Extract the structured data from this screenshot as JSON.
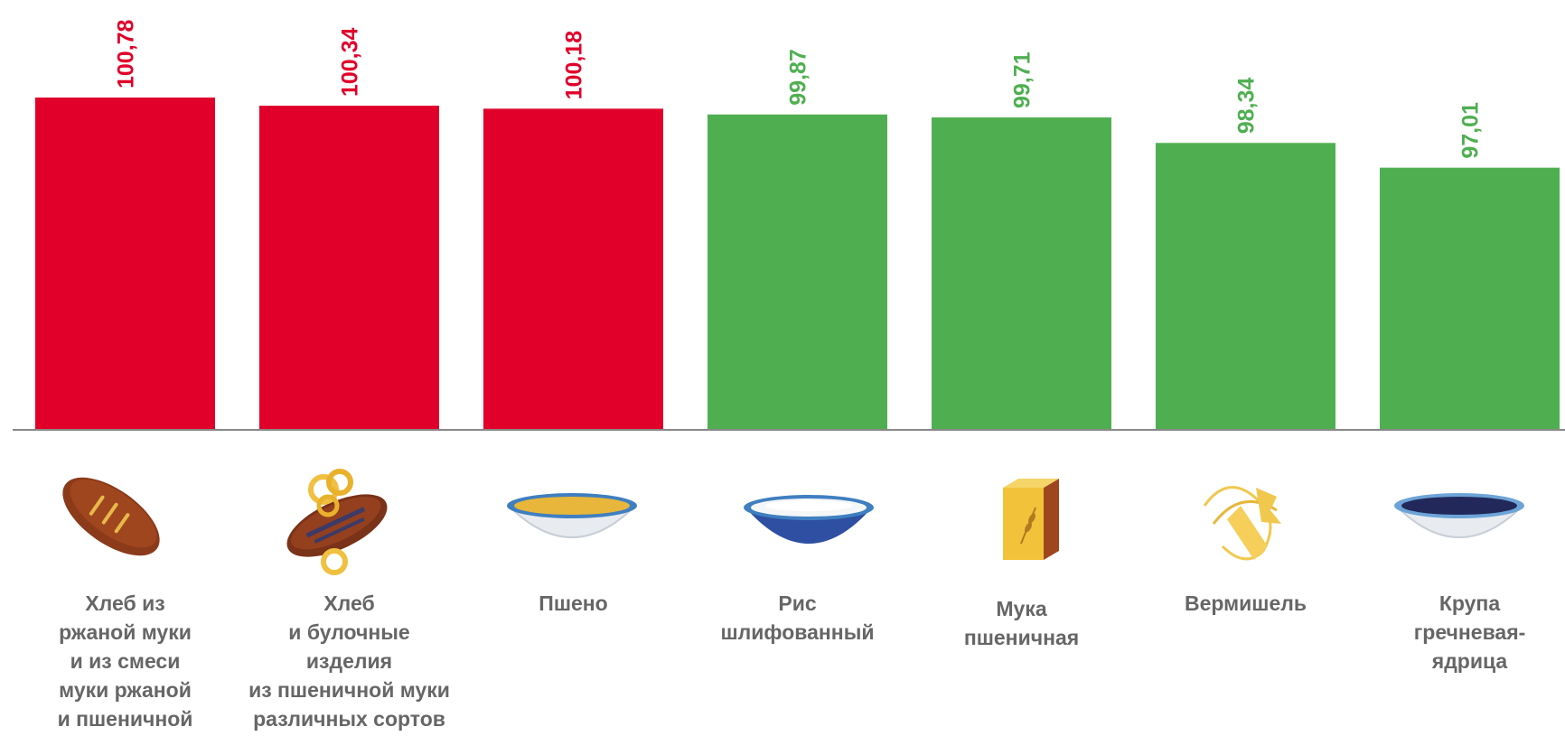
{
  "colors": {
    "above": "#E0002A",
    "below": "#4FAF50",
    "axis": "#888888",
    "label": "#666666"
  },
  "chart_data": {
    "type": "bar",
    "categories": [
      "Хлеб из\nржаной муки\nи из смеси\nмуки ржаной\nи пшеничной",
      "Хлеб\nи булочные\nизделия\nиз пшеничной муки\nразличных сортов",
      "Пшено",
      "Рис\nшлифованный",
      "Мука\nпшеничная",
      "Вермишель",
      "Крупа\nгречневая-\nядрица"
    ],
    "values": [
      100.78,
      100.34,
      100.18,
      99.87,
      99.71,
      98.34,
      97.01
    ],
    "value_labels": [
      "100,78",
      "100,34",
      "100,18",
      "99,87",
      "99,71",
      "98,34",
      "97,01"
    ],
    "bar_colors": [
      "#E0002A",
      "#E0002A",
      "#E0002A",
      "#4FAF50",
      "#4FAF50",
      "#4FAF50",
      "#4FAF50"
    ],
    "icons": [
      "rye-bread-icon",
      "wheat-bread-icon",
      "millet-bowl-icon",
      "rice-bowl-icon",
      "flour-bag-icon",
      "vermicelli-icon",
      "buckwheat-bowl-icon"
    ],
    "value_label_orientation": "vertical",
    "grid": false,
    "legend": "none"
  }
}
